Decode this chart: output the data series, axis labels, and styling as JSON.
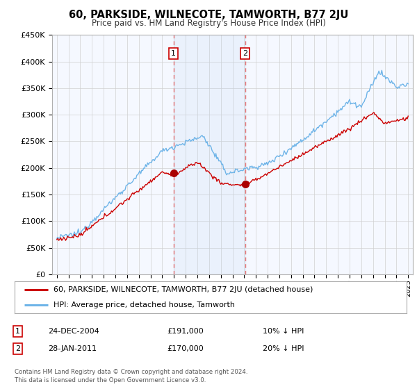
{
  "title": "60, PARKSIDE, WILNECOTE, TAMWORTH, B77 2JU",
  "subtitle": "Price paid vs. HM Land Registry's House Price Index (HPI)",
  "ylim": [
    0,
    450000
  ],
  "yticks": [
    0,
    50000,
    100000,
    150000,
    200000,
    250000,
    300000,
    350000,
    400000,
    450000
  ],
  "ytick_labels": [
    "£0",
    "£50K",
    "£100K",
    "£150K",
    "£200K",
    "£250K",
    "£300K",
    "£350K",
    "£400K",
    "£450K"
  ],
  "hpi_color": "#6eb4e8",
  "price_color": "#cc0000",
  "marker_color": "#aa0000",
  "vline_color": "#e07070",
  "background_color": "#ffffff",
  "plot_bg_color": "#f5f8ff",
  "grid_color": "#d0d0d0",
  "transaction1_year": 2004.96,
  "transaction1_price": 191000,
  "transaction1_label": "1",
  "transaction2_year": 2011.08,
  "transaction2_price": 170000,
  "transaction2_label": "2",
  "legend_entry1": "60, PARKSIDE, WILNECOTE, TAMWORTH, B77 2JU (detached house)",
  "legend_entry2": "HPI: Average price, detached house, Tamworth",
  "footer": "Contains HM Land Registry data © Crown copyright and database right 2024.\nThis data is licensed under the Open Government Licence v3.0.",
  "table_rows": [
    {
      "num": "1",
      "date": "24-DEC-2004",
      "price": "£191,000",
      "change": "10% ↓ HPI"
    },
    {
      "num": "2",
      "date": "28-JAN-2011",
      "price": "£170,000",
      "change": "20% ↓ HPI"
    }
  ]
}
